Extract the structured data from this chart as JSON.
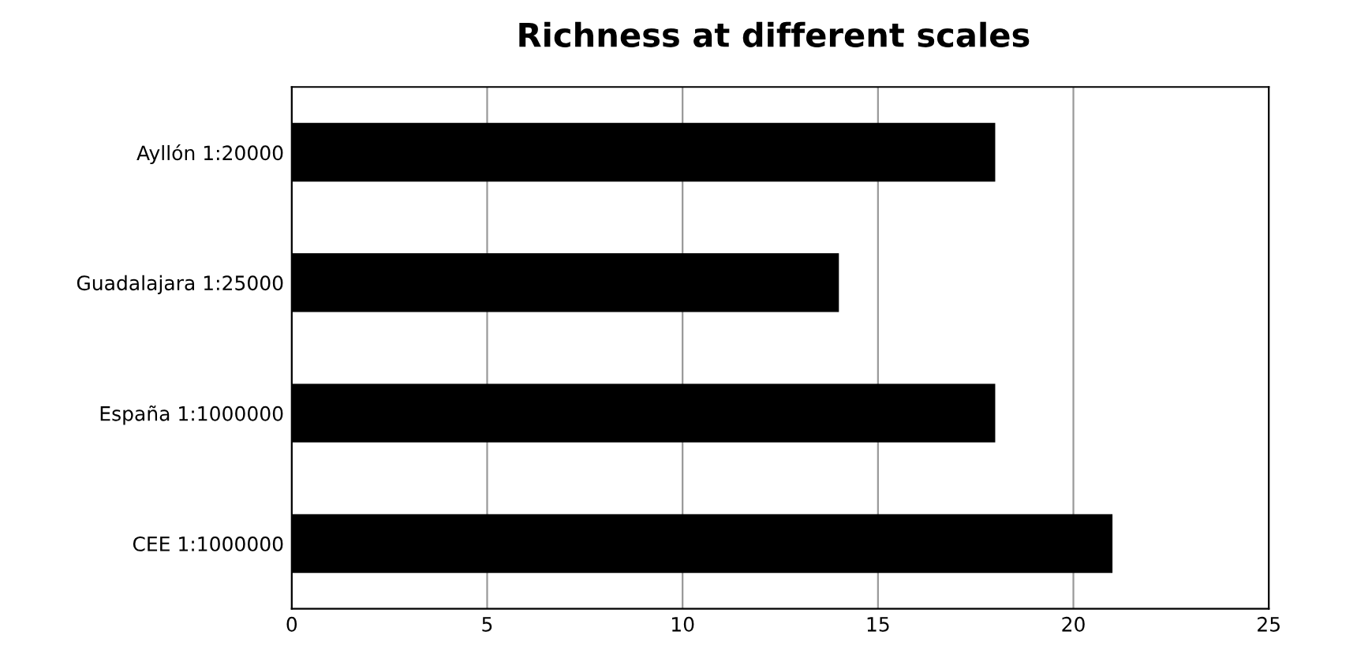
{
  "chart_data": {
    "type": "bar",
    "orientation": "horizontal",
    "title": "Richness at different scales",
    "categories": [
      "Ayllón 1:20000",
      "Guadalajara 1:25000",
      "España 1:1000000",
      "CEE 1:1000000"
    ],
    "values": [
      18,
      14,
      18,
      21
    ],
    "color": "#000000",
    "xlim": [
      0,
      25
    ],
    "xticks": [
      0,
      5,
      10,
      15,
      20,
      25
    ],
    "grid": "x",
    "legend": false
  }
}
